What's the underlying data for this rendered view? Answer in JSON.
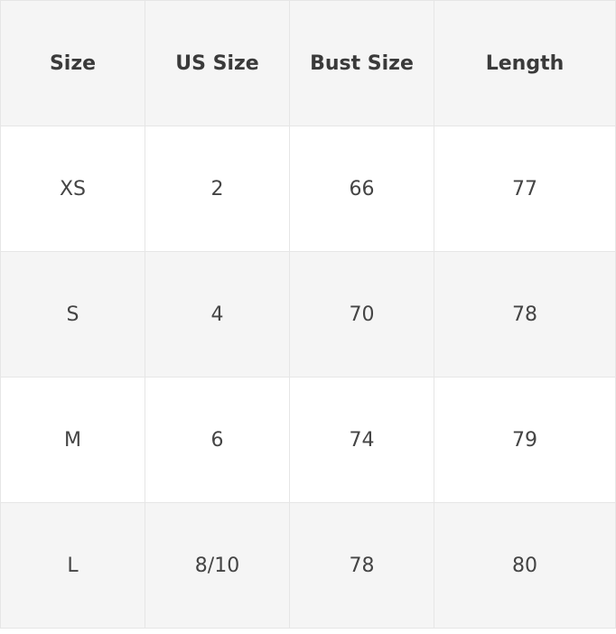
{
  "table": {
    "header": [
      "Size",
      "US Size",
      "Bust Size",
      "Length"
    ],
    "rows": [
      [
        "XS",
        "2",
        "66",
        "77"
      ],
      [
        "S",
        "4",
        "70",
        "78"
      ],
      [
        "M",
        "6",
        "74",
        "79"
      ],
      [
        "L",
        "8/10",
        "78",
        "80"
      ]
    ]
  }
}
